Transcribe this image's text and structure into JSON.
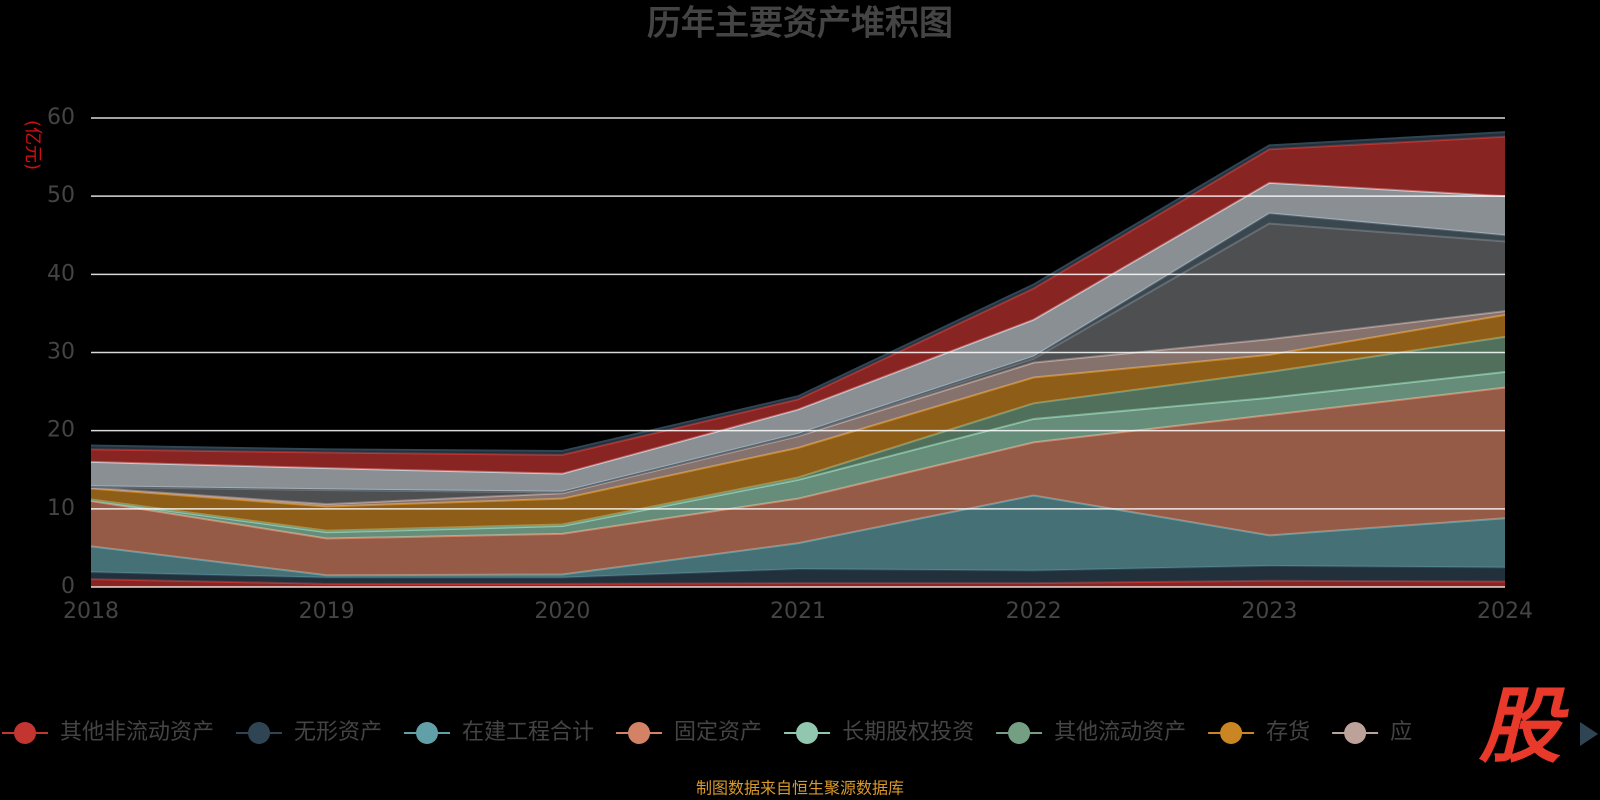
{
  "chart_data": {
    "type": "stacked-area",
    "title": "历年主要资产堆积图",
    "y_label": "(亿元)",
    "categories": [
      "2018",
      "2019",
      "2020",
      "2021",
      "2022",
      "2023",
      "2024"
    ],
    "ylim": [
      0,
      60
    ],
    "yticks": [
      0,
      10,
      20,
      30,
      40,
      50,
      60
    ],
    "grid": true,
    "series": [
      {
        "name": "其他非流动资产",
        "color": "#c23531",
        "values": [
          1.0,
          0.4,
          0.4,
          0.5,
          0.5,
          0.8,
          0.7
        ]
      },
      {
        "name": "无形资产",
        "color": "#2f4554",
        "values": [
          0.9,
          0.8,
          0.8,
          1.8,
          1.6,
          1.9,
          1.8
        ]
      },
      {
        "name": "在建工程合计",
        "color": "#61a0a8",
        "values": [
          3.3,
          0.3,
          0.4,
          3.3,
          9.6,
          3.9,
          6.3
        ]
      },
      {
        "name": "固定资产",
        "color": "#d48265",
        "values": [
          5.8,
          4.7,
          5.2,
          5.7,
          6.8,
          15.4,
          16.7
        ]
      },
      {
        "name": "长期股权投资",
        "color": "#91c7ae",
        "values": [
          0.1,
          0.8,
          1.0,
          2.4,
          3.0,
          2.2,
          2.0
        ]
      },
      {
        "name": "其他流动资产",
        "color": "#749f83",
        "values": [
          0.1,
          0.2,
          0.2,
          0.3,
          2.0,
          3.3,
          4.5
        ]
      },
      {
        "name": "存货",
        "color": "#ca8622",
        "values": [
          1.4,
          3.1,
          3.3,
          3.8,
          3.3,
          2.2,
          2.8
        ]
      },
      {
        "name": "应",
        "color": "#bda29a",
        "values": [
          0.1,
          0.3,
          0.7,
          1.5,
          1.9,
          2.0,
          0.5
        ]
      },
      {
        "color": "#6e7074",
        "values": [
          0.1,
          1.8,
          0.1,
          0.1,
          0.5,
          14.8,
          8.9
        ]
      },
      {
        "color": "#546570",
        "values": [
          0.1,
          0.1,
          0.1,
          0.2,
          0.3,
          1.3,
          0.8
        ]
      },
      {
        "color": "#c4ccd3",
        "values": [
          3.1,
          2.7,
          2.3,
          3.1,
          4.7,
          3.9,
          5.0
        ]
      },
      {
        "color": "#c23531",
        "values": [
          1.6,
          2.0,
          2.4,
          1.3,
          4.0,
          4.3,
          7.6
        ]
      },
      {
        "color": "#2f4554",
        "values": [
          0.5,
          0.4,
          0.5,
          0.4,
          0.5,
          0.5,
          0.6
        ]
      }
    ],
    "source": "制图数据来自恒生聚源数据库",
    "watermark": "股"
  }
}
